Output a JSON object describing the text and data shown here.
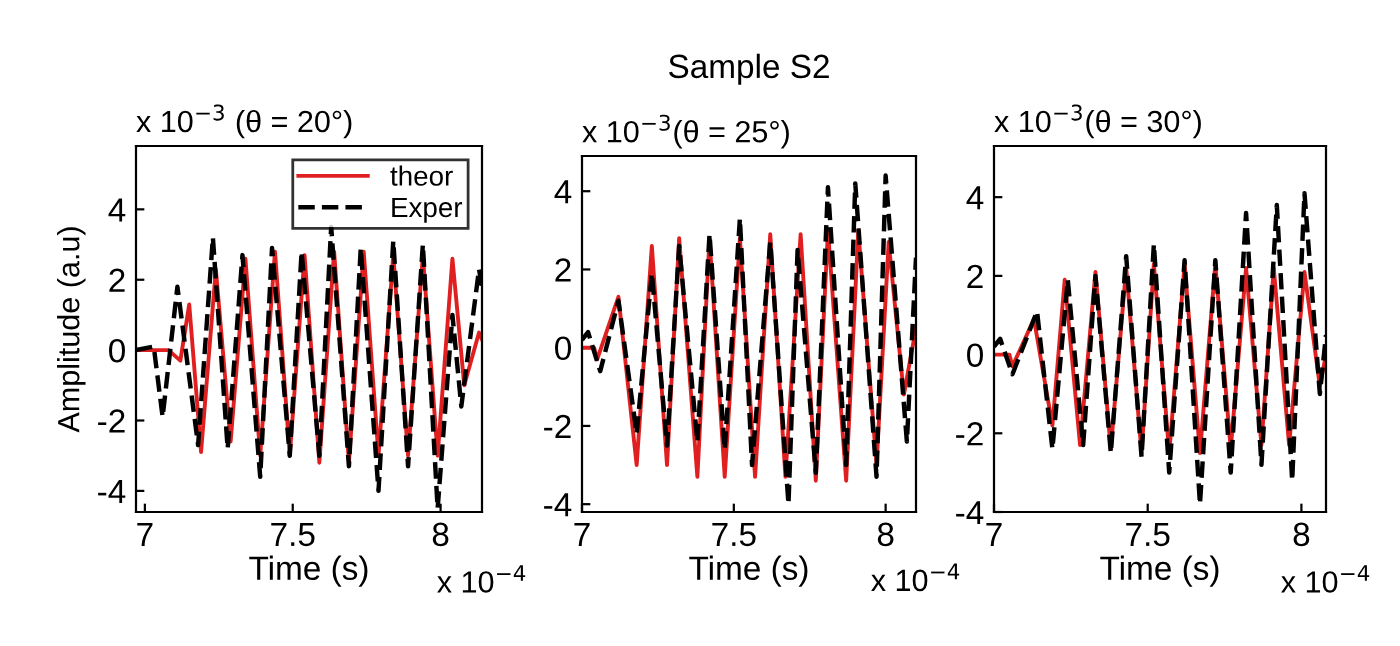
{
  "chart_data": [
    {
      "type": "line",
      "subtitle": "x 10$^{−3}$ (θ = 20°)",
      "xlabel": "Time (s)",
      "ylabel": "Amplitude (a.u)",
      "annotations": [
        "x 10$^{−4}$"
      ],
      "xlim": [
        6.97,
        8.14
      ],
      "ylim": [
        -4.6,
        5.8
      ],
      "xticks": [
        7,
        7.5,
        8
      ],
      "yticks": [
        -4,
        -2,
        0,
        2,
        4
      ],
      "grid": false,
      "legend": "top right",
      "series": [
        {
          "name": "theor",
          "color": "#e02020",
          "line_style": "solid",
          "x": [
            6.97,
            7.08,
            7.12,
            7.15,
            7.19,
            7.24,
            7.29,
            7.34,
            7.39,
            7.44,
            7.49,
            7.54,
            7.59,
            7.64,
            7.69,
            7.74,
            7.79,
            7.84,
            7.89,
            7.94,
            7.99,
            8.04,
            8.08,
            8.13,
            8.14
          ],
          "values": [
            0,
            0,
            -0.3,
            1.3,
            -2.9,
            2.3,
            -2.6,
            2.6,
            -3.0,
            2.8,
            -3.0,
            2.7,
            -3.2,
            2.8,
            -3.2,
            2.8,
            -3.0,
            2.7,
            -3.0,
            2.7,
            -3.0,
            2.6,
            -1.0,
            0.5,
            0.3
          ]
        },
        {
          "name": "Exper",
          "color": "#000000",
          "line_style": "dashed",
          "x": [
            6.97,
            7.03,
            7.06,
            7.11,
            7.18,
            7.23,
            7.28,
            7.33,
            7.39,
            7.43,
            7.49,
            7.53,
            7.59,
            7.63,
            7.69,
            7.73,
            7.79,
            7.84,
            7.89,
            7.94,
            7.99,
            8.04,
            8.07,
            8.13,
            8.14
          ],
          "values": [
            0,
            0.1,
            -1.9,
            1.8,
            -2.7,
            3.2,
            -2.8,
            2.7,
            -3.6,
            2.9,
            -3.0,
            2.8,
            -3.0,
            3.5,
            -3.3,
            2.9,
            -4.0,
            3.1,
            -3.3,
            3.0,
            -4.5,
            1.0,
            -1.6,
            2.3,
            1.8
          ]
        }
      ]
    },
    {
      "type": "line",
      "title": "Sample S2",
      "subtitle": "x 10$^{−3}$(θ = 25°)",
      "xlabel": "Time (s)",
      "annotations": [
        "x 10$^{−4}$"
      ],
      "xlim": [
        7.0,
        8.1
      ],
      "ylim": [
        -4.2,
        4.9
      ],
      "xticks": [
        7,
        7.5,
        8
      ],
      "yticks": [
        -4,
        -2,
        0,
        2,
        4
      ],
      "grid": false,
      "series": [
        {
          "color": "#e02020",
          "line_style": "solid",
          "x": [
            7.0,
            7.04,
            7.05,
            7.12,
            7.18,
            7.23,
            7.28,
            7.32,
            7.38,
            7.42,
            7.47,
            7.52,
            7.57,
            7.62,
            7.67,
            7.72,
            7.77,
            7.81,
            7.87,
            7.91,
            7.97,
            8.01,
            8.06,
            8.1
          ],
          "values": [
            0,
            0,
            -0.3,
            1.3,
            -3.0,
            2.6,
            -3.0,
            2.8,
            -3.3,
            2.8,
            -3.3,
            2.8,
            -3.3,
            2.9,
            -3.3,
            2.9,
            -3.4,
            3.0,
            -3.4,
            3.0,
            -3.0,
            2.7,
            -1.2,
            0.5
          ]
        },
        {
          "color": "#000000",
          "line_style": "dashed",
          "x": [
            7.0,
            7.02,
            7.06,
            7.12,
            7.18,
            7.23,
            7.28,
            7.32,
            7.38,
            7.42,
            7.47,
            7.52,
            7.56,
            7.62,
            7.68,
            7.71,
            7.77,
            7.81,
            7.87,
            7.9,
            7.97,
            8.0,
            8.07,
            8.1
          ],
          "values": [
            0.2,
            0.4,
            -0.6,
            1.2,
            -2.2,
            1.9,
            -2.5,
            2.6,
            -2.4,
            2.9,
            -2.6,
            3.3,
            -3.0,
            2.7,
            -4.0,
            2.5,
            -3.2,
            4.1,
            -3.0,
            4.2,
            -3.3,
            4.4,
            -2.4,
            2.3
          ]
        }
      ]
    },
    {
      "type": "line",
      "subtitle": "x 10$^{−3}$(θ = 30°)",
      "xlabel": "Time (s)",
      "annotations": [
        "x 10$^{−4}$"
      ],
      "xlim": [
        7.0,
        8.08
      ],
      "ylim": [
        -4.0,
        5.3
      ],
      "xticks": [
        7,
        7.5,
        8
      ],
      "yticks": [
        -4,
        -2,
        0,
        2,
        4
      ],
      "grid": false,
      "series": [
        {
          "color": "#e02020",
          "line_style": "solid",
          "x": [
            7.0,
            7.05,
            7.06,
            7.13,
            7.19,
            7.23,
            7.28,
            7.33,
            7.38,
            7.43,
            7.48,
            7.52,
            7.57,
            7.62,
            7.67,
            7.72,
            7.77,
            7.82,
            7.87,
            7.91,
            7.96,
            8.01,
            8.06,
            8.08
          ],
          "values": [
            0,
            0,
            -0.3,
            0.9,
            -1.8,
            1.9,
            -2.3,
            2.1,
            -2.4,
            2.2,
            -2.5,
            2.3,
            -2.5,
            2.3,
            -2.5,
            2.3,
            -2.4,
            2.2,
            -2.3,
            2.2,
            -2.3,
            2.1,
            -0.8,
            0
          ]
        },
        {
          "color": "#000000",
          "line_style": "dashed",
          "x": [
            7.0,
            7.02,
            7.06,
            7.14,
            7.19,
            7.24,
            7.29,
            7.33,
            7.38,
            7.43,
            7.48,
            7.52,
            7.57,
            7.62,
            7.67,
            7.72,
            7.77,
            7.82,
            7.87,
            7.92,
            7.97,
            8.01,
            8.06,
            8.08
          ],
          "values": [
            0.2,
            0.4,
            -0.5,
            1.1,
            -2.4,
            1.9,
            -2.3,
            2.0,
            -2.5,
            2.5,
            -2.6,
            2.8,
            -3.0,
            2.4,
            -3.8,
            2.4,
            -3.0,
            3.6,
            -2.8,
            3.8,
            -3.2,
            4.1,
            -1.0,
            0.5
          ]
        }
      ]
    }
  ]
}
